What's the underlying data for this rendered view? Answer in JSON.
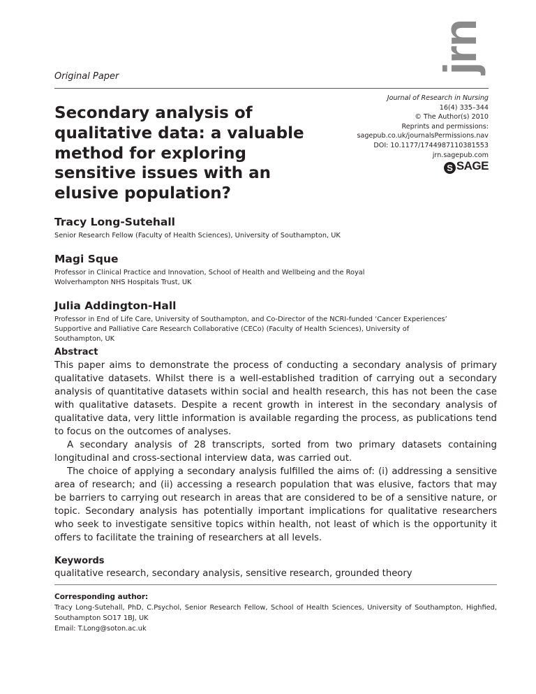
{
  "logo": "jrn",
  "section": "Original Paper",
  "title": "Secondary analysis of qualitative data: a valuable method for exploring sensitive issues with an elusive population?",
  "journal": {
    "name": "Journal of Research in Nursing",
    "volume": "16(4) 335–344",
    "copyright": "© The Author(s) 2010",
    "reprints": "Reprints and permissions:",
    "permissions_url": "sagepub.co.uk/journalsPermissions.nav",
    "doi": "DOI: 10.1177/1744987110381553",
    "site": "jrn.sagepub.com",
    "publisher": "SAGE"
  },
  "authors": [
    {
      "name": "Tracy Long-Sutehall",
      "affiliation": "Senior Research Fellow (Faculty of Health Sciences), University of Southampton, UK"
    },
    {
      "name": "Magi Sque",
      "affiliation": "Professor in Clinical Practice and Innovation, School of Health and Wellbeing and the Royal Wolverhampton NHS Hospitals Trust, UK"
    },
    {
      "name": "Julia Addington-Hall",
      "affiliation": "Professor in End of Life Care, University of Southampton, and Co-Director of the NCRI-funded ‘Cancer Experiences’ Supportive and Palliative Care Research Collaborative (CECo) (Faculty of Health Sciences), University of Southampton, UK"
    }
  ],
  "abstract": {
    "heading": "Abstract",
    "paragraphs": [
      "This paper aims to demonstrate the process of conducting a secondary analysis of primary qualitative datasets. Whilst there is a well-established tradition of carrying out a secondary analysis of quantitative datasets within social and health research, this has not been the case with qualitative datasets. Despite a recent growth in interest in the secondary analysis of qualitative data, very little information is available regarding the process, as publications tend to focus on the outcomes of analyses.",
      "A secondary analysis of 28 transcripts, sorted from two primary datasets containing longitudinal and cross-sectional interview data, was carried out.",
      "The choice of applying a secondary analysis fulfilled the aims of: (i) addressing a sensitive area of research; and (ii) accessing a research population that was elusive, factors that may be barriers to carrying out research in areas that are considered to be of a sensitive nature, or topic. Secondary analysis has potentially important implications for qualitative researchers who seek to investigate sensitive topics within health, not least of which is the opportunity it offers to facilitate the training of researchers at all levels."
    ]
  },
  "keywords": {
    "heading": "Keywords",
    "text": "qualitative research, secondary analysis, sensitive research, grounded theory"
  },
  "corresponding": {
    "heading": "Corresponding author:",
    "address": "Tracy Long-Sutehall, PhD, C.Psychol, Senior Research Fellow, School of Health Sciences, University of Southampton, Highfied, Southampton SO17 1BJ, UK",
    "email": "Email: T.Long@soton.ac.uk"
  }
}
